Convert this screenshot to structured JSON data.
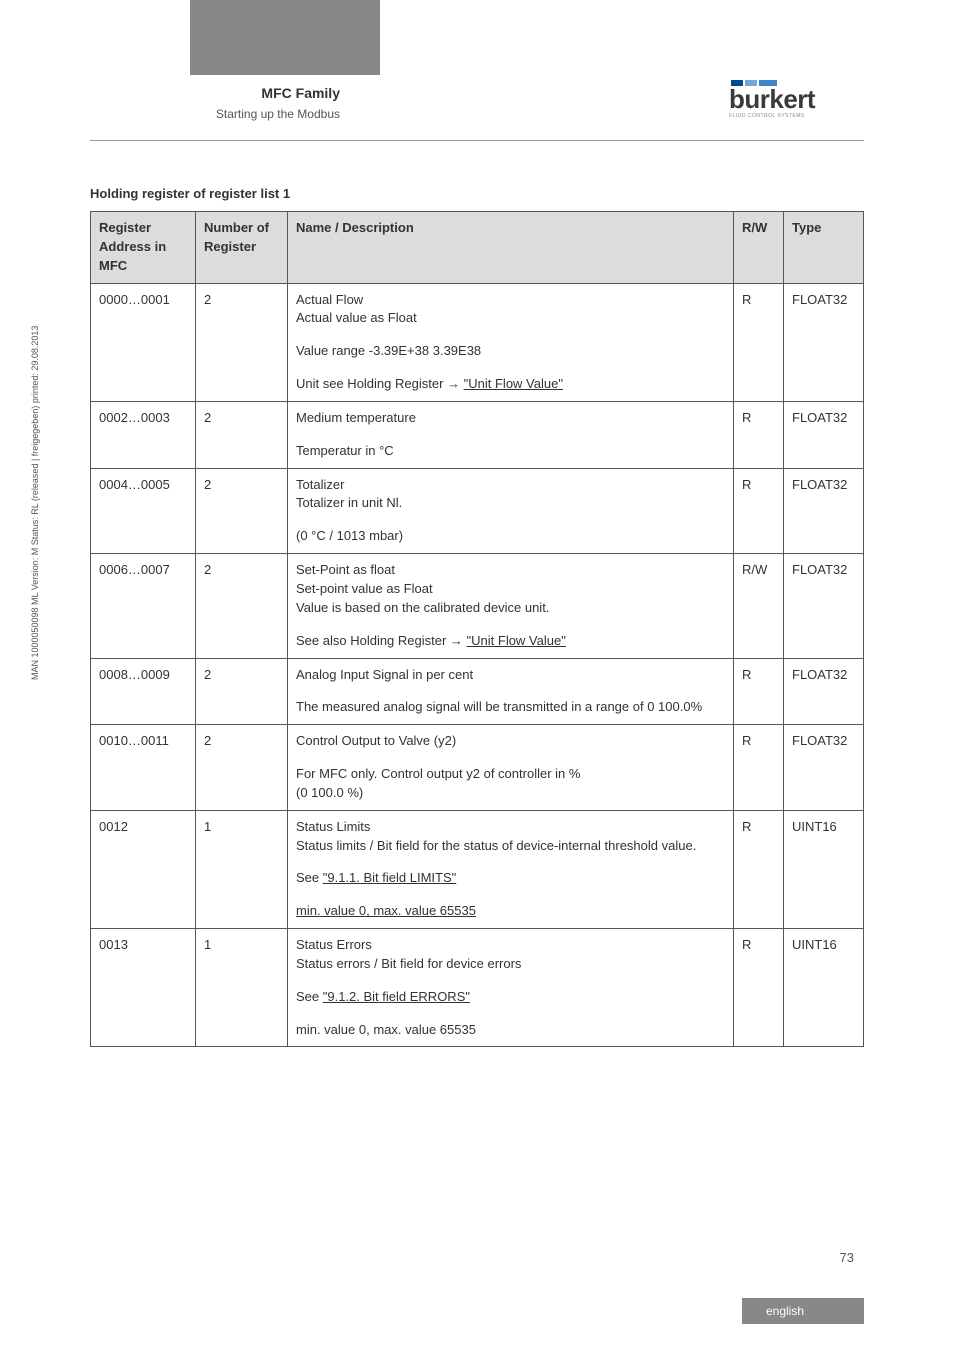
{
  "header": {
    "title_bold": "MFC Family",
    "title_sub": "Starting up the Modbus",
    "logo_text": "burkert",
    "logo_sub": "FLUID CONTROL SYSTEMS"
  },
  "side_text": "MAN 1000050098 ML Version: M Status: RL (released | freigegeben) printed: 29.08.2013",
  "table_title": "Holding register of register list 1",
  "columns": {
    "c0": "Register Address in MFC",
    "c1": "Number of  Register",
    "c2": "Name / Description",
    "c3": "R/W",
    "c4": "Type"
  },
  "rows": {
    "r0": {
      "addr": "0000…0001",
      "num": "2",
      "d0": "Actual Flow\nActual value as Float",
      "d1": "Value range -3.39E+38    3.39E38",
      "d2_pre": "Unit see Holding Register  → ",
      "d2_link": "\"Unit Flow Value\"",
      "rw": "R",
      "type": "FLOAT32"
    },
    "r1": {
      "addr": "0002…0003",
      "num": "2",
      "d0": "Medium temperature",
      "d1": "Temperatur in °C",
      "rw": "R",
      "type": "FLOAT32"
    },
    "r2": {
      "addr": "0004…0005",
      "num": "2",
      "d0": "Totalizer\nTotalizer in unit Nl.",
      "d1": "(0 °C / 1013 mbar)",
      "rw": "R",
      "type": "FLOAT32"
    },
    "r3": {
      "addr": "0006…0007",
      "num": "2",
      "d0": "Set-Point as float\nSet-point value as Float\nValue is based on the calibrated device unit.",
      "d1_pre": "See also Holding Register  → ",
      "d1_link": "\"Unit Flow Value\"",
      "rw": "R/W",
      "type": "FLOAT32"
    },
    "r4": {
      "addr": "0008…0009",
      "num": "2",
      "d0": "Analog Input Signal in per cent",
      "d1": "The measured analog signal will be transmitted in a range of 0    100.0%",
      "rw": "R",
      "type": "FLOAT32"
    },
    "r5": {
      "addr": "0010…0011",
      "num": "2",
      "d0": "Control Output to Valve (y2)",
      "d1": "For MFC only. Control output y2 of controller in %\n(0    100.0 %)",
      "rw": "R",
      "type": "FLOAT32"
    },
    "r6": {
      "addr": "0012",
      "num": "1",
      "d0": "Status Limits\nStatus limits / Bit field for the status of device-internal threshold value.",
      "d1_pre": "See ",
      "d1_link": "\"9.1.1. Bit field LIMITS\"",
      "d2_link": "min. value 0, max. value 65535",
      "rw": "R",
      "type": "UINT16"
    },
    "r7": {
      "addr": "0013",
      "num": "1",
      "d0": "Status Errors\nStatus errors  / Bit field for device errors",
      "d1_pre": "See ",
      "d1_link": "\"9.1.2. Bit field ERRORS\"",
      "d2": "min. value 0, max. value 65535",
      "rw": "R",
      "type": "UINT16"
    }
  },
  "footer": {
    "page": "73",
    "label": "english"
  }
}
